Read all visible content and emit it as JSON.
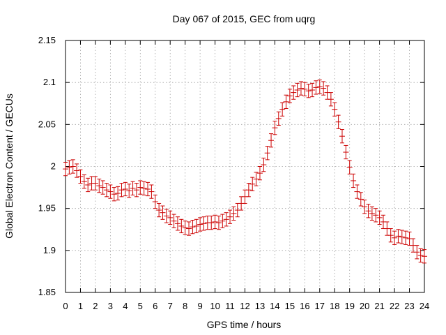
{
  "chart_data": {
    "type": "scatter",
    "title": "Day 067 of 2015, GEC from uqrg",
    "xlabel": "GPS time / hours",
    "ylabel": "Global Electron Content / GECUs",
    "xlim": [
      0,
      24
    ],
    "ylim": [
      1.85,
      2.15
    ],
    "xticks": [
      "0",
      "1",
      "2",
      "3",
      "4",
      "5",
      "6",
      "7",
      "8",
      "9",
      "10",
      "11",
      "12",
      "13",
      "14",
      "15",
      "16",
      "17",
      "18",
      "19",
      "20",
      "21",
      "22",
      "23",
      "24"
    ],
    "yticks": [
      "1.85",
      "1.9",
      "1.95",
      "2",
      "2.05",
      "2.1",
      "2.15"
    ],
    "grid": true,
    "error_bar": 0.008,
    "series": [
      {
        "color": "#cc0000",
        "x": [
          0.0,
          0.25,
          0.5,
          0.75,
          1.0,
          1.25,
          1.5,
          1.75,
          2.0,
          2.25,
          2.5,
          2.75,
          3.0,
          3.25,
          3.5,
          3.75,
          4.0,
          4.25,
          4.5,
          4.75,
          5.0,
          5.25,
          5.5,
          5.75,
          6.0,
          6.25,
          6.5,
          6.75,
          7.0,
          7.25,
          7.5,
          7.75,
          8.0,
          8.25,
          8.5,
          8.75,
          9.0,
          9.25,
          9.5,
          9.75,
          10.0,
          10.25,
          10.5,
          10.75,
          11.0,
          11.25,
          11.5,
          11.75,
          12.0,
          12.25,
          12.5,
          12.75,
          13.0,
          13.25,
          13.5,
          13.75,
          14.0,
          14.25,
          14.5,
          14.75,
          15.0,
          15.25,
          15.5,
          15.75,
          16.0,
          16.25,
          16.5,
          16.75,
          17.0,
          17.25,
          17.5,
          17.75,
          18.0,
          18.25,
          18.5,
          18.75,
          19.0,
          19.25,
          19.5,
          19.75,
          20.0,
          20.25,
          20.5,
          20.75,
          21.0,
          21.25,
          21.5,
          21.75,
          22.0,
          22.25,
          22.5,
          22.75,
          23.0,
          23.25,
          23.5,
          23.75,
          24.0
        ],
        "y": [
          1.997,
          1.999,
          2.0,
          1.995,
          1.988,
          1.982,
          1.978,
          1.98,
          1.98,
          1.977,
          1.975,
          1.972,
          1.97,
          1.967,
          1.968,
          1.972,
          1.973,
          1.971,
          1.974,
          1.972,
          1.975,
          1.974,
          1.973,
          1.97,
          1.958,
          1.948,
          1.945,
          1.941,
          1.939,
          1.935,
          1.932,
          1.929,
          1.927,
          1.926,
          1.928,
          1.929,
          1.931,
          1.932,
          1.933,
          1.933,
          1.934,
          1.933,
          1.935,
          1.937,
          1.94,
          1.944,
          1.948,
          1.956,
          1.964,
          1.972,
          1.979,
          1.985,
          1.992,
          2.002,
          2.016,
          2.031,
          2.046,
          2.057,
          2.068,
          2.077,
          2.084,
          2.088,
          2.091,
          2.093,
          2.092,
          2.09,
          2.091,
          2.094,
          2.095,
          2.093,
          2.088,
          2.08,
          2.068,
          2.053,
          2.036,
          2.017,
          1.999,
          1.983,
          1.97,
          1.961,
          1.952,
          1.947,
          1.944,
          1.942,
          1.939,
          1.934,
          1.926,
          1.918,
          1.915,
          1.917,
          1.916,
          1.915,
          1.914,
          1.906,
          1.898,
          1.894,
          1.893
        ]
      }
    ]
  }
}
